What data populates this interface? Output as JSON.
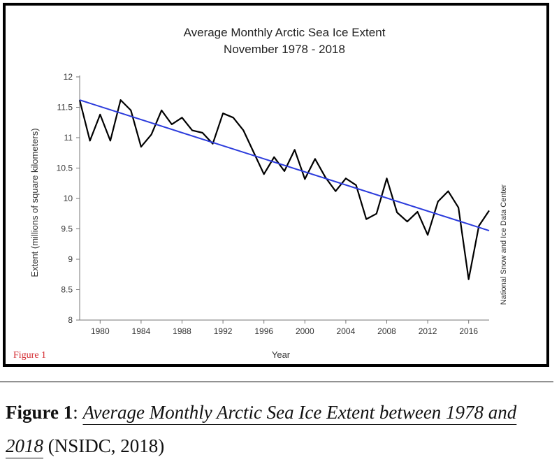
{
  "chart_data": {
    "type": "line",
    "title": [
      "Average Monthly Arctic Sea Ice Extent",
      "November 1978 - 2018"
    ],
    "xlabel": "Year",
    "ylabel": "Extent (millions of square kilometers)",
    "source": "National Snow and Ice Data Center",
    "xlim": [
      1978,
      2018
    ],
    "ylim": [
      8,
      12
    ],
    "x_ticks": [
      1980,
      1984,
      1988,
      1992,
      1996,
      2000,
      2004,
      2008,
      2012,
      2016
    ],
    "y_ticks": [
      "8",
      "8.5",
      "9",
      "9.5",
      "10",
      "10.5",
      "11",
      "11.5",
      "12"
    ],
    "grid": false,
    "series": [
      {
        "type": "line",
        "color": "#000000",
        "x": [
          1978,
          1979,
          1980,
          1981,
          1982,
          1983,
          1984,
          1985,
          1986,
          1987,
          1988,
          1989,
          1990,
          1991,
          1992,
          1993,
          1994,
          1995,
          1996,
          1997,
          1998,
          1999,
          2000,
          2001,
          2002,
          2003,
          2004,
          2005,
          2006,
          2007,
          2008,
          2009,
          2010,
          2011,
          2012,
          2013,
          2014,
          2015,
          2016,
          2017,
          2018
        ],
        "y": [
          11.62,
          10.95,
          11.38,
          10.95,
          11.62,
          11.45,
          10.85,
          11.05,
          11.45,
          11.22,
          11.33,
          11.12,
          11.08,
          10.9,
          11.4,
          11.33,
          11.12,
          10.76,
          10.4,
          10.68,
          10.45,
          10.8,
          10.32,
          10.65,
          10.35,
          10.12,
          10.33,
          10.22,
          9.66,
          9.75,
          10.33,
          9.77,
          9.62,
          9.78,
          9.4,
          9.95,
          10.12,
          9.85,
          8.67,
          9.55,
          9.8
        ]
      },
      {
        "type": "trendline",
        "color": "#2b3bdc",
        "x": [
          1978,
          2018
        ],
        "y": [
          11.62,
          9.47
        ]
      }
    ]
  },
  "figure_tag": "Figure 1",
  "caption": {
    "label": "Figure 1",
    "separator": ":",
    "title": "Average Monthly Arctic Sea Ice Extent between 1978 and 2018",
    "source": "(NSIDC, 2018)"
  }
}
